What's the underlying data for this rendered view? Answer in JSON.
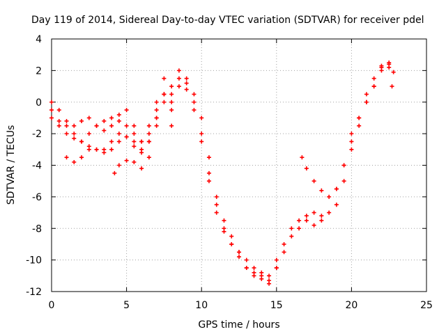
{
  "chart_data": {
    "type": "scatter",
    "title": "Day 119 of 2014, Sidereal Day-to-day VTEC variation (SDTVAR) for receiver pdel",
    "xlabel": "GPS time / hours",
    "ylabel": "SDTVAR / TECUs",
    "xlim": [
      0,
      25
    ],
    "ylim": [
      -12,
      4
    ],
    "xticks": [
      0,
      5,
      10,
      15,
      20,
      25
    ],
    "yticks": [
      -12,
      -10,
      -8,
      -6,
      -4,
      -2,
      0,
      2,
      4
    ],
    "grid": true,
    "marker": "+",
    "color": "#ff0000",
    "series": [
      {
        "x": [
          0,
          0.5,
          1,
          1.5,
          2,
          2.5,
          3,
          3.5,
          4,
          4.5,
          5,
          5.5,
          6,
          6.5,
          7,
          7.5,
          8,
          8.5,
          9,
          9.5,
          10,
          10.5,
          11,
          11.5,
          12,
          12.5,
          13,
          13.5,
          14,
          14.5,
          15,
          15.5,
          16,
          16.5,
          17,
          17.5,
          18,
          18.5,
          19,
          19.5,
          20,
          20.5,
          21,
          21.5,
          22,
          22.5,
          22.8
        ],
        "y": [
          0,
          -0.5,
          -1.2,
          -1.5,
          -1.2,
          -1.0,
          -1.5,
          -1.8,
          -1.5,
          -1.2,
          -1.5,
          -2.0,
          -2.5,
          -1.5,
          -0.5,
          0.5,
          1.0,
          1.5,
          1.2,
          0.5,
          -1.0,
          -3.5,
          -6.0,
          -7.5,
          -8.5,
          -9.5,
          -10.5,
          -10.8,
          -11.0,
          -11.5,
          -10.0,
          -9.0,
          -8.0,
          -7.5,
          -7.2,
          -7.0,
          -7.2,
          -7.0,
          -5.5,
          -4.0,
          -2.5,
          -1.0,
          0.5,
          1.5,
          2.3,
          2.2,
          1.9
        ]
      },
      {
        "x": [
          0,
          0.5,
          1,
          1.5,
          2,
          2.5,
          3,
          3.5,
          4,
          4.5,
          5,
          5.5,
          6,
          6.5,
          7,
          7.5,
          8,
          8.5,
          9,
          9.5,
          10,
          10.5,
          11,
          11.5,
          12,
          12.5,
          13,
          13.5,
          14,
          14.5,
          15,
          15.5,
          16,
          16.5,
          17,
          17.5,
          18
        ],
        "y": [
          -0.5,
          -1.2,
          -1.5,
          -2.0,
          -2.5,
          -2.0,
          -1.5,
          -1.2,
          -1.0,
          -0.8,
          -0.5,
          -1.5,
          -2.5,
          -2.0,
          0.0,
          1.5,
          0.5,
          2.0,
          1.5,
          0.0,
          -2.0,
          -4.5,
          -6.5,
          -8.0,
          -9.0,
          -9.8,
          -10.5,
          -11.0,
          -11.2,
          -11.3,
          -10.5,
          -9.5,
          -8.5,
          -8.0,
          -7.5,
          -7.8,
          -7.5
        ]
      },
      {
        "x": [
          0,
          0.5,
          1,
          1.5,
          2,
          2.5,
          3,
          3.5,
          4,
          4.5,
          5,
          5.5,
          6,
          6.5,
          7,
          7.5,
          8,
          8.5,
          9,
          9.5,
          10,
          10.5,
          11,
          11.5,
          12,
          12.5,
          13,
          13.5,
          14,
          14.5,
          15
        ],
        "y": [
          -1.0,
          -1.5,
          -2.0,
          -2.3,
          -2.5,
          -2.8,
          -3.0,
          -3.0,
          -2.5,
          -2.0,
          -2.2,
          -2.5,
          -3.0,
          -2.5,
          -1.0,
          0.5,
          0.0,
          1.0,
          0.8,
          -0.5,
          -2.5,
          -5.0,
          -7.0,
          -8.2,
          -9.0,
          -9.5,
          -10.0,
          -10.5,
          -10.8,
          -11.0,
          -10.5
        ]
      },
      {
        "x": [
          1,
          1.5,
          2,
          2.5,
          3,
          3.5,
          4,
          4.5,
          5,
          5.5,
          6,
          6.5,
          7,
          7.5,
          8
        ],
        "y": [
          -3.5,
          -3.8,
          -3.5,
          -3.0,
          -3.0,
          -3.2,
          -3.0,
          -2.5,
          -2.2,
          -2.8,
          -3.2,
          -2.5,
          -1.0,
          0.5,
          -0.5
        ]
      },
      {
        "x": [
          4.2,
          4.5,
          5,
          5.5,
          6,
          6.5,
          7,
          7.5,
          8
        ],
        "y": [
          -4.5,
          -4.0,
          -3.7,
          -3.8,
          -4.2,
          -3.5,
          -1.5,
          0.0,
          -1.5
        ]
      },
      {
        "x": [
          16.7,
          17,
          17.5,
          18,
          18.5,
          19,
          19.5,
          20,
          20.5,
          21,
          21.5,
          22,
          22.5
        ],
        "y": [
          -3.5,
          -4.2,
          -5.0,
          -5.6,
          -6.0,
          -5.5,
          -4.0,
          -2.0,
          -1.0,
          0.0,
          1.0,
          2.0,
          2.5
        ]
      },
      {
        "x": [
          19,
          19.5,
          20,
          20.5,
          21,
          21.5,
          22,
          22.5,
          22.7
        ],
        "y": [
          -6.5,
          -5.0,
          -3.0,
          -1.5,
          0.0,
          1.0,
          2.2,
          2.4,
          1.0
        ]
      }
    ]
  }
}
